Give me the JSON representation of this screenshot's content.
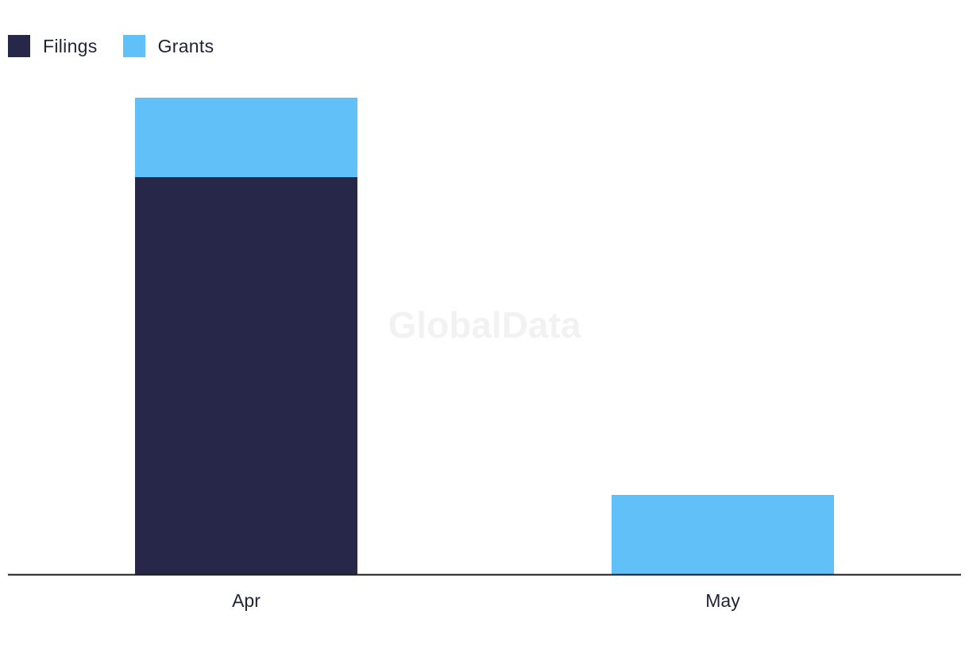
{
  "chart_data": {
    "type": "bar",
    "stacked": true,
    "categories": [
      "Apr",
      "May"
    ],
    "series": [
      {
        "name": "Filings",
        "color": "#272849",
        "values": [
          5,
          0
        ]
      },
      {
        "name": "Grants",
        "color": "#62c0f8",
        "values": [
          1,
          1
        ]
      }
    ],
    "ylim": [
      0,
      6
    ],
    "grid": false,
    "legend_position": "top-left"
  },
  "watermark": "GlobalData"
}
